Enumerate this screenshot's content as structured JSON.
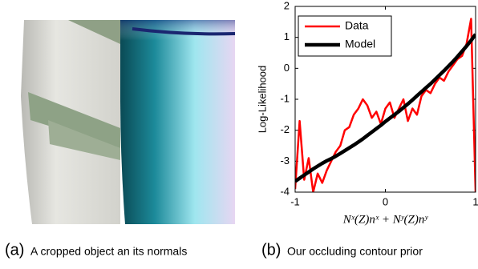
{
  "chart_data": {
    "type": "line",
    "ylabel": "Log-Likelihood",
    "xlabel": "Nˣ(Z)nˣ + Nʸ(Z)nʸ",
    "x": [
      -1,
      -0.95,
      -0.9,
      -0.85,
      -0.8,
      -0.75,
      -0.7,
      -0.65,
      -0.6,
      -0.55,
      -0.5,
      -0.45,
      -0.4,
      -0.35,
      -0.3,
      -0.25,
      -0.2,
      -0.15,
      -0.1,
      -0.05,
      0,
      0.05,
      0.1,
      0.15,
      0.2,
      0.25,
      0.3,
      0.35,
      0.4,
      0.45,
      0.5,
      0.55,
      0.6,
      0.65,
      0.7,
      0.75,
      0.8,
      0.85,
      0.9,
      0.95,
      1
    ],
    "series": [
      {
        "name": "Data",
        "color": "#ff0000",
        "values": [
          -3.9,
          -1.7,
          -3.6,
          -2.9,
          -4,
          -3.4,
          -3.7,
          -3.3,
          -3.0,
          -2.7,
          -2.5,
          -2.0,
          -1.9,
          -1.5,
          -1.3,
          -1.0,
          -1.2,
          -1.6,
          -1.4,
          -1.8,
          -1.3,
          -1.1,
          -1.6,
          -1.3,
          -1.0,
          -1.7,
          -1.3,
          -1.5,
          -0.9,
          -0.7,
          -0.8,
          -0.5,
          -0.3,
          -0.4,
          -0.1,
          0.1,
          0.3,
          0.4,
          0.8,
          1.6,
          -4
        ]
      },
      {
        "name": "Model",
        "color": "#000000",
        "values": [
          -3.65,
          -3.55,
          -3.45,
          -3.35,
          -3.25,
          -3.16,
          -3.07,
          -2.99,
          -2.92,
          -2.84,
          -2.75,
          -2.66,
          -2.57,
          -2.48,
          -2.38,
          -2.28,
          -2.17,
          -2.06,
          -1.95,
          -1.84,
          -1.72,
          -1.61,
          -1.5,
          -1.39,
          -1.27,
          -1.15,
          -1.02,
          -0.89,
          -0.76,
          -0.63,
          -0.5,
          -0.36,
          -0.22,
          -0.08,
          0.07,
          0.22,
          0.38,
          0.55,
          0.72,
          0.9,
          1.1
        ]
      }
    ],
    "xlim": [
      -1,
      1
    ],
    "xticks": [
      -1,
      0,
      1
    ],
    "ylim": [
      -4,
      2
    ],
    "yticks": [
      -4,
      -3,
      -2,
      -1,
      0,
      1,
      2
    ],
    "legend": "upper left"
  },
  "figure": {
    "panel_a": {
      "label": "(a)",
      "text": "A cropped object an its normals"
    },
    "panel_b": {
      "label": "(b)",
      "text": "Our occluding contour prior"
    }
  }
}
